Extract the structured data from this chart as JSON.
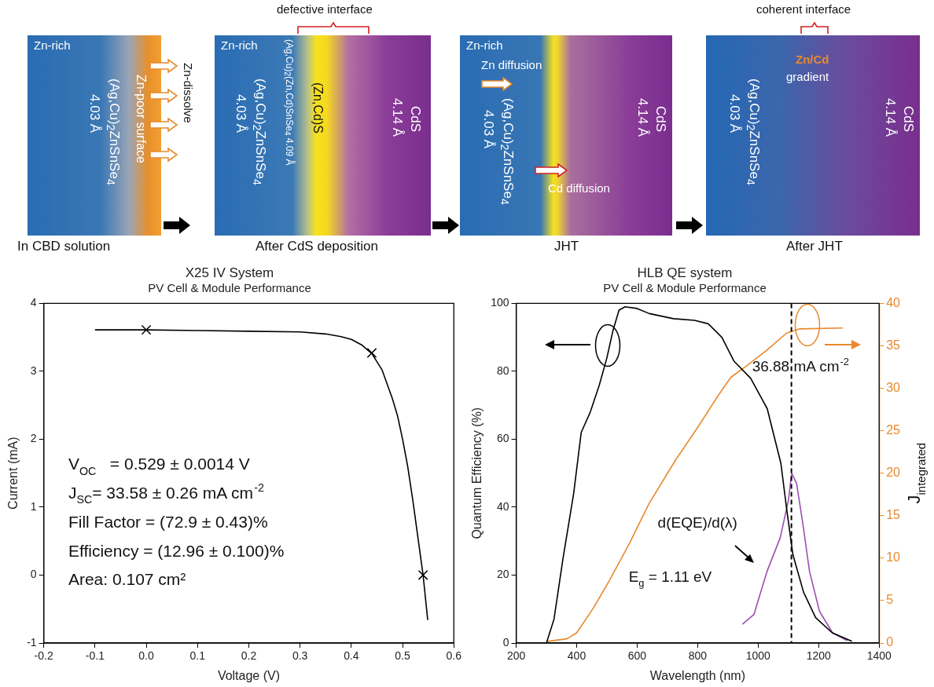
{
  "chart_data": [
    {
      "type": "other",
      "annotations": [
        "Zn-rich",
        "(Ag,Cu)$_{2}$ZnSnSe$_{4}$",
        "4.03 Å",
        "Zn-poor surface",
        "Zn-dissolve",
        "In CBD solution",
        "defective interface",
        "Zn-rich",
        "(Ag,Cu)$_{2}$ZnSnSe$_{4}$",
        "4.03 Å",
        "(Ag,Cu)$_{2}$(Zn,Cd)SnSe$_{4}$ 4.09 Å",
        "(Zn,Cd)S",
        "CdS",
        "4.14 Å",
        "After CdS deposition",
        "Zn-rich",
        "Zn diffusion",
        "(Ag,Cu)$_{2}$ZnSnSe$_{4}$",
        "4.03 Å",
        "Cd diffusion",
        "CdS",
        "4.14 Å",
        "JHT",
        "coherent interface",
        "Zn/Cd",
        "gradient",
        "(Ag,Cu)$_{2}$ZnSnSe$_{4}$",
        "4.03 Å",
        "CdS",
        "4.14 Å",
        "After JHT"
      ]
    },
    {
      "type": "line",
      "title": "X25 IV System",
      "subtitle": "PV Cell & Module Performance",
      "xlabel": "Voltage (V)",
      "ylabel": "Current (mA)",
      "xlim": [
        -0.2,
        0.6
      ],
      "xticks": [
        -0.2,
        -0.1,
        {
          "value": 0,
          "label": "0.0"
        },
        0.1,
        0.2,
        0.3,
        0.4,
        0.5,
        0.6
      ],
      "ylim": [
        -1,
        4
      ],
      "yticks": [
        -1,
        0,
        1,
        2,
        3,
        4
      ],
      "grid": false,
      "legend": false,
      "series": [
        {
          "type": "line",
          "marker": "none",
          "color": "#000000",
          "x": [
            -0.1,
            0,
            0.1,
            0.2,
            0.3,
            0.35,
            0.38,
            0.4,
            0.42,
            0.44,
            0.46,
            0.48,
            0.49,
            0.5,
            0.51,
            0.52,
            0.53,
            0.54,
            0.549
          ],
          "values": [
            3.61,
            3.61,
            3.6,
            3.59,
            3.58,
            3.55,
            3.51,
            3.47,
            3.39,
            3.26,
            3.02,
            2.6,
            2.35,
            2.0,
            1.6,
            1.1,
            0.55,
            0,
            -0.66
          ]
        },
        {
          "type": "scatter",
          "marker": "cross",
          "color": "#000000",
          "x": [
            0,
            0.44,
            0.54
          ],
          "values": [
            3.61,
            3.27,
            0
          ]
        }
      ],
      "annotations": [
        "V$_{OC}$   = 0.529 ± 0.0014 V",
        "J$_{SC}$= 33.58 ± 0.26 mA cm$^{-2}$",
        "Fill Factor = (72.9 ± 0.43)%",
        "Efficiency = (12.96 ± 0.100)%",
        "Area: 0.107 cm²"
      ]
    },
    {
      "type": "line",
      "title": "HLB QE system",
      "subtitle": "PV Cell & Module Performance",
      "xlabel": "Wavelength (nm)",
      "ylabel": "Quantum Efficiency (%)",
      "y2label": "J$_{integrated}$",
      "xlim": [
        200,
        1400
      ],
      "xticks": [
        200,
        400,
        600,
        800,
        1000,
        1200,
        1400
      ],
      "ylim": [
        0,
        100
      ],
      "yticks": [
        0,
        20,
        40,
        60,
        80,
        100
      ],
      "y2lim": [
        0,
        40
      ],
      "y2ticks": [
        0,
        5,
        10,
        15,
        20,
        25,
        30,
        35,
        40
      ],
      "grid": false,
      "legend": false,
      "series": [
        {
          "color": "#000000",
          "x": [
            300,
            325,
            355,
            390,
            415,
            445,
            475,
            500,
            520,
            540,
            560,
            600,
            640,
            720,
            790,
            835,
            880,
            920,
            975,
            1030,
            1075,
            1095,
            1115,
            1150,
            1190,
            1245,
            1310
          ],
          "values": [
            0,
            7,
            25,
            44,
            62,
            68,
            76,
            84,
            92,
            98,
            99,
            98.5,
            97,
            95.5,
            95,
            94,
            90,
            83,
            78,
            69,
            53,
            39,
            26,
            15,
            7.5,
            3,
            0.5
          ]
        },
        {
          "color": "#e8892e",
          "axis": "y2",
          "x": [
            303,
            368,
            400,
            455,
            509,
            574,
            639,
            726,
            802,
            867,
            910,
            964,
            1029,
            1094,
            1138,
            1280
          ],
          "values": [
            0.2,
            0.5,
            1.2,
            4.1,
            7.4,
            11.7,
            16.4,
            21.5,
            25.5,
            29.1,
            31.3,
            32.7,
            34.5,
            36.5,
            37,
            37.1
          ]
        },
        {
          "color": "#9b4fb0",
          "x": [
            948,
            986,
            1029,
            1073,
            1100,
            1111,
            1127,
            1148,
            1170,
            1203,
            1246,
            1295
          ],
          "values": [
            5.5,
            8.4,
            21,
            31,
            42,
            50,
            47,
            35,
            21,
            9.3,
            3,
            0.7
          ]
        }
      ],
      "ref_lines": [
        {
          "axis": "x",
          "value": 1110,
          "line_style": "dashed",
          "color": "#000000"
        }
      ],
      "annotations": [
        "36.88 mA cm$^{-2}$",
        "d(EQE)/d(λ)",
        "E$_{g}$ = 1.11 eV"
      ]
    }
  ]
}
